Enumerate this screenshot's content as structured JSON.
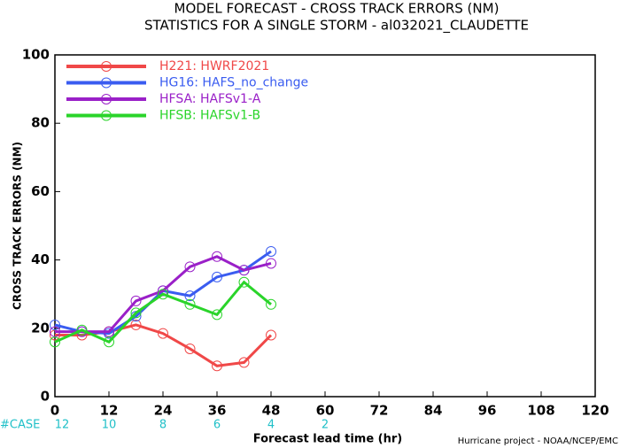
{
  "chart_data": {
    "type": "line",
    "title": "MODEL FORECAST - CROSS TRACK ERRORS (NM)",
    "subtitle": "STATISTICS FOR A SINGLE STORM - al032021_CLAUDETTE",
    "y_label": "CROSS TRACK ERRORS (NM)",
    "x_label": "Forecast lead time (hr)",
    "credit": "Hurricane project - NOAA/NCEP/EMC",
    "x": [
      0,
      6,
      12,
      18,
      24,
      30,
      36,
      42,
      48
    ],
    "series": [
      {
        "name": "H221: HWRF2021",
        "color": "#f04848",
        "values": [
          18,
          18,
          19,
          21,
          18.5,
          14,
          9,
          10,
          18
        ]
      },
      {
        "name": "HG16: HAFS_no_change",
        "color": "#3a5cf0",
        "values": [
          21,
          19,
          18.5,
          23.5,
          31,
          29.5,
          35,
          37,
          42.5
        ]
      },
      {
        "name": "HFSA: HAFSv1-A",
        "color": "#9a20c8",
        "values": [
          19,
          19,
          19,
          28,
          31,
          38,
          41,
          37,
          39
        ]
      },
      {
        "name": "HFSB: HAFSv1-B",
        "color": "#2ad42a",
        "values": [
          16,
          19.5,
          16,
          24.5,
          30,
          27,
          24,
          33.5,
          27
        ]
      }
    ],
    "case_label": "#CASE",
    "case_x": [
      0,
      12,
      24,
      36,
      48,
      60
    ],
    "cases": [
      12,
      10,
      8,
      6,
      4,
      2
    ],
    "case_color": "#20c0c8",
    "xlim": [
      0,
      120
    ],
    "xticks": [
      0,
      12,
      24,
      36,
      48,
      60,
      72,
      84,
      96,
      108,
      120
    ],
    "ylim": [
      0,
      100
    ],
    "yticks": [
      0,
      20,
      40,
      60,
      80,
      100
    ],
    "grid": false,
    "legend": "upper left"
  }
}
